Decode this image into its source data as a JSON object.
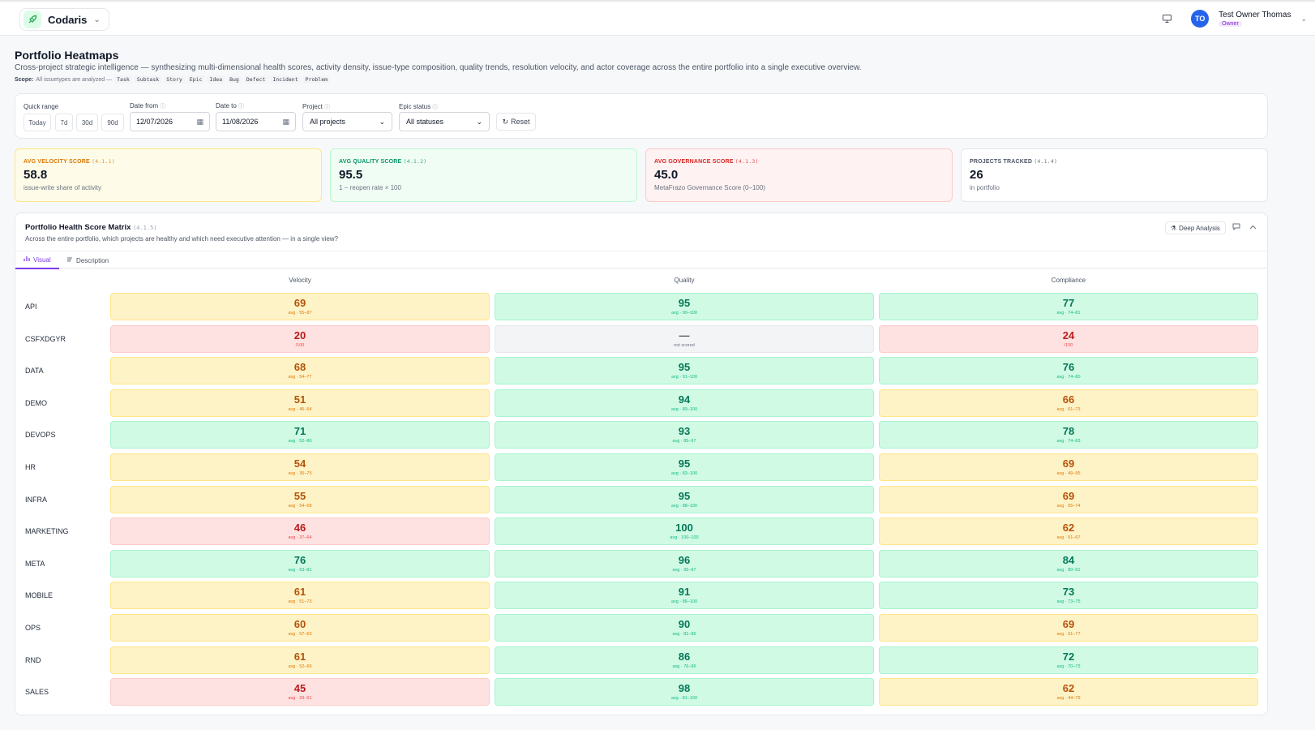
{
  "app": {
    "brand": "Codaris",
    "user_initials": "TO",
    "user_name": "Test Owner Thomas",
    "user_role": "Owner"
  },
  "header": {
    "title": "Portfolio Heatmaps",
    "subtitle": "Cross-project strategic intelligence — synthesizing multi-dimensional health scores, activity density, issue-type composition, quality trends, resolution velocity, and actor coverage across the entire portfolio into a single executive overview.",
    "scope_label": "Scope:",
    "scope_text": "All issuetypes are analyzed —",
    "scope_types": [
      "Task",
      "Subtask",
      "Story",
      "Epic",
      "Idea",
      "Bug",
      "Defect",
      "Incident",
      "Problem"
    ]
  },
  "filters": {
    "quick_range_label": "Quick range",
    "quick_ranges": [
      "Today",
      "7d",
      "30d",
      "90d"
    ],
    "date_from_label": "Date from",
    "date_from": "12/07/2026",
    "date_to_label": "Date to",
    "date_to": "11/08/2026",
    "project_label": "Project",
    "project_value": "All projects",
    "epic_status_label": "Epic status",
    "epic_status_value": "All statuses",
    "reset_label": "Reset"
  },
  "kpis": [
    {
      "label": "AVG VELOCITY SCORE",
      "code": "(4.1.1)",
      "value": "58.8",
      "sub": "issue-write share of activity",
      "tone": "yellow"
    },
    {
      "label": "AVG QUALITY SCORE",
      "code": "(4.1.2)",
      "value": "95.5",
      "sub": "1 − reopen rate × 100",
      "tone": "green"
    },
    {
      "label": "AVG GOVERNANCE SCORE",
      "code": "(4.1.3)",
      "value": "45.0",
      "sub": "MetaFrazo Governance Score (0–100)",
      "tone": "red"
    },
    {
      "label": "PROJECTS TRACKED",
      "code": "(4.1.4)",
      "value": "26",
      "sub": "in portfolio",
      "tone": "neutral"
    }
  ],
  "matrix": {
    "title": "Portfolio Health Score Matrix",
    "code": "(4.1.5)",
    "subtitle": "Across the entire portfolio, which projects are healthy and which need executive attention — in a single view?",
    "deep_analysis_label": "Deep Analysis",
    "tabs": [
      "Visual",
      "Description"
    ],
    "columns": [
      "Velocity",
      "Quality",
      "Compliance"
    ],
    "rows": [
      {
        "project": "API",
        "cells": [
          {
            "v": "69",
            "s": "avg · 55–87",
            "t": "yellow"
          },
          {
            "v": "95",
            "s": "avg · 90–100",
            "t": "green"
          },
          {
            "v": "77",
            "s": "avg · 74–81",
            "t": "green"
          }
        ]
      },
      {
        "project": "CSFXDGYR",
        "cells": [
          {
            "v": "20",
            "s": "/100",
            "t": "red"
          },
          {
            "v": "—",
            "s": "not scored",
            "t": "gray"
          },
          {
            "v": "24",
            "s": "/100",
            "t": "red"
          }
        ]
      },
      {
        "project": "DATA",
        "cells": [
          {
            "v": "68",
            "s": "avg · 54–77",
            "t": "yellow"
          },
          {
            "v": "95",
            "s": "avg · 91–100",
            "t": "green"
          },
          {
            "v": "76",
            "s": "avg · 74–80",
            "t": "green"
          }
        ]
      },
      {
        "project": "DEMO",
        "cells": [
          {
            "v": "51",
            "s": "avg · 45–54",
            "t": "yellow"
          },
          {
            "v": "94",
            "s": "avg · 89–100",
            "t": "green"
          },
          {
            "v": "66",
            "s": "avg · 61–73",
            "t": "yellow"
          }
        ]
      },
      {
        "project": "DEVOPS",
        "cells": [
          {
            "v": "71",
            "s": "avg · 52–80",
            "t": "green"
          },
          {
            "v": "93",
            "s": "avg · 85–97",
            "t": "green"
          },
          {
            "v": "78",
            "s": "avg · 74–83",
            "t": "green"
          }
        ]
      },
      {
        "project": "HR",
        "cells": [
          {
            "v": "54",
            "s": "avg · 35–75",
            "t": "yellow"
          },
          {
            "v": "95",
            "s": "avg · 83–100",
            "t": "green"
          },
          {
            "v": "69",
            "s": "avg · 49–95",
            "t": "yellow"
          }
        ]
      },
      {
        "project": "INFRA",
        "cells": [
          {
            "v": "55",
            "s": "avg · 54–58",
            "t": "yellow"
          },
          {
            "v": "95",
            "s": "avg · 88–100",
            "t": "green"
          },
          {
            "v": "69",
            "s": "avg · 65–74",
            "t": "yellow"
          }
        ]
      },
      {
        "project": "MARKETING",
        "cells": [
          {
            "v": "46",
            "s": "avg · 37–64",
            "t": "red"
          },
          {
            "v": "100",
            "s": "avg · 100–100",
            "t": "green"
          },
          {
            "v": "62",
            "s": "avg · 51–67",
            "t": "yellow"
          }
        ]
      },
      {
        "project": "META",
        "cells": [
          {
            "v": "76",
            "s": "avg · 63–81",
            "t": "green"
          },
          {
            "v": "96",
            "s": "avg · 95–97",
            "t": "green"
          },
          {
            "v": "84",
            "s": "avg · 80–91",
            "t": "green"
          }
        ]
      },
      {
        "project": "MOBILE",
        "cells": [
          {
            "v": "61",
            "s": "avg · 51–73",
            "t": "yellow"
          },
          {
            "v": "91",
            "s": "avg · 86–100",
            "t": "green"
          },
          {
            "v": "73",
            "s": "avg · 73–75",
            "t": "green"
          }
        ]
      },
      {
        "project": "OPS",
        "cells": [
          {
            "v": "60",
            "s": "avg · 57–63",
            "t": "yellow"
          },
          {
            "v": "90",
            "s": "avg · 81–96",
            "t": "green"
          },
          {
            "v": "69",
            "s": "avg · 61–77",
            "t": "yellow"
          }
        ]
      },
      {
        "project": "RND",
        "cells": [
          {
            "v": "61",
            "s": "avg · 52–69",
            "t": "yellow"
          },
          {
            "v": "86",
            "s": "avg · 76–96",
            "t": "green"
          },
          {
            "v": "72",
            "s": "avg · 70–73",
            "t": "green"
          }
        ]
      },
      {
        "project": "SALES",
        "cells": [
          {
            "v": "45",
            "s": "avg · 29–61",
            "t": "red"
          },
          {
            "v": "98",
            "s": "avg · 81–100",
            "t": "green"
          },
          {
            "v": "62",
            "s": "avg · 44–79",
            "t": "yellow"
          }
        ]
      }
    ]
  },
  "colors": {
    "accent": "#7c3aed",
    "green_bg": "#d1fae5",
    "yellow_bg": "#fef3c7",
    "red_bg": "#fee2e2",
    "gray_bg": "#f3f4f6"
  }
}
